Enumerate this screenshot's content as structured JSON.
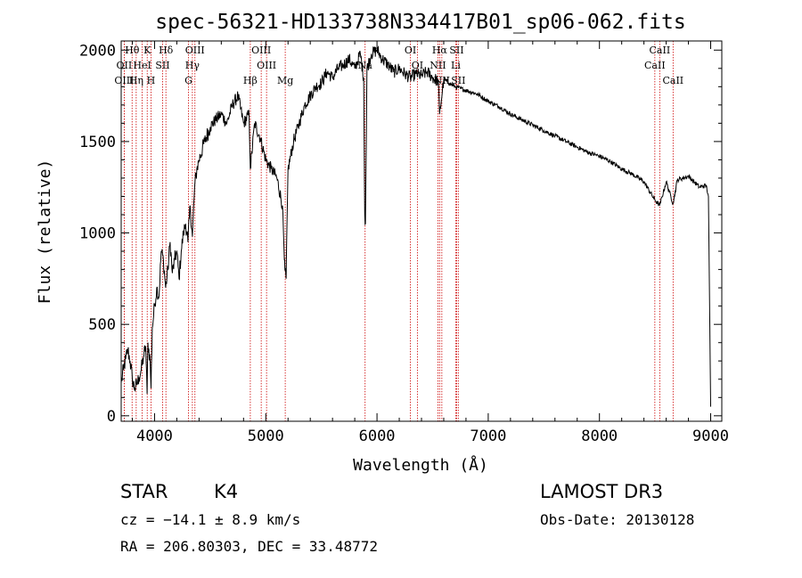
{
  "chart_data": {
    "type": "line",
    "title": "spec-56321-HD133738N334417B01_sp06-062.fits",
    "xlabel": "Wavelength (Å)",
    "ylabel": "Flux (relative)",
    "xlim": [
      3700,
      9100
    ],
    "ylim": [
      -30,
      2050
    ],
    "xticks": [
      4000,
      5000,
      6000,
      7000,
      8000,
      9000
    ],
    "yticks": [
      0,
      500,
      1000,
      1500,
      2000
    ],
    "series": [
      {
        "name": "spectrum",
        "x": [
          3700,
          3720,
          3740,
          3760,
          3780,
          3800,
          3820,
          3840,
          3860,
          3880,
          3900,
          3920,
          3933,
          3940,
          3960,
          3968,
          3980,
          4000,
          4020,
          4040,
          4060,
          4080,
          4100,
          4120,
          4140,
          4160,
          4180,
          4200,
          4220,
          4240,
          4260,
          4280,
          4300,
          4320,
          4340,
          4360,
          4380,
          4400,
          4450,
          4500,
          4550,
          4600,
          4650,
          4700,
          4750,
          4800,
          4850,
          4861,
          4900,
          4950,
          5000,
          5050,
          5100,
          5150,
          5167,
          5172,
          5183,
          5200,
          5250,
          5300,
          5350,
          5400,
          5450,
          5500,
          5550,
          5600,
          5650,
          5700,
          5750,
          5800,
          5850,
          5880,
          5890,
          5896,
          5910,
          5950,
          6000,
          6050,
          6100,
          6150,
          6200,
          6250,
          6300,
          6350,
          6400,
          6450,
          6500,
          6550,
          6563,
          6600,
          6650,
          6700,
          6750,
          6800,
          6900,
          7000,
          7100,
          7200,
          7300,
          7400,
          7500,
          7600,
          7700,
          7800,
          7900,
          8000,
          8100,
          8200,
          8300,
          8400,
          8498,
          8542,
          8600,
          8662,
          8700,
          8800,
          8900,
          8960,
          8980,
          9000
        ],
        "y": [
          180,
          250,
          310,
          360,
          300,
          200,
          150,
          170,
          210,
          250,
          320,
          380,
          120,
          400,
          300,
          150,
          480,
          600,
          700,
          650,
          900,
          850,
          700,
          800,
          950,
          780,
          850,
          900,
          750,
          900,
          1000,
          1050,
          950,
          1150,
          980,
          1250,
          1350,
          1400,
          1500,
          1580,
          1620,
          1650,
          1600,
          1700,
          1750,
          1600,
          1650,
          1350,
          1600,
          1520,
          1400,
          1350,
          1300,
          1150,
          850,
          800,
          750,
          1350,
          1500,
          1600,
          1700,
          1750,
          1800,
          1820,
          1880,
          1850,
          1900,
          1920,
          1950,
          1900,
          1980,
          1850,
          1100,
          1050,
          1900,
          1980,
          2000,
          1950,
          1920,
          1880,
          1900,
          1870,
          1850,
          1870,
          1860,
          1880,
          1850,
          1830,
          1650,
          1840,
          1820,
          1800,
          1790,
          1780,
          1760,
          1720,
          1690,
          1650,
          1620,
          1590,
          1560,
          1530,
          1500,
          1470,
          1440,
          1420,
          1390,
          1350,
          1320,
          1280,
          1180,
          1150,
          1280,
          1160,
          1290,
          1310,
          1250,
          1260,
          1200,
          50
        ]
      }
    ],
    "spectral_lines": [
      {
        "name": "Hθ",
        "x": 3798,
        "row": 0
      },
      {
        "name": "OII",
        "x": 3727,
        "row": 1
      },
      {
        "name": "OIII",
        "x": 3727,
        "row": 2
      },
      {
        "name": "Hη",
        "x": 3835,
        "row": 2
      },
      {
        "name": "HeI",
        "x": 3889,
        "row": 1
      },
      {
        "name": "K",
        "x": 3934,
        "row": 0
      },
      {
        "name": "H",
        "x": 3968,
        "row": 2
      },
      {
        "name": "SII",
        "x": 4072,
        "row": 1
      },
      {
        "name": "Hδ",
        "x": 4102,
        "row": 0
      },
      {
        "name": "OIII",
        "x": 4363,
        "row": 0
      },
      {
        "name": "Hγ",
        "x": 4340,
        "row": 1
      },
      {
        "name": "G",
        "x": 4305,
        "row": 2
      },
      {
        "name": "Hβ",
        "x": 4861,
        "row": 2
      },
      {
        "name": "OIII",
        "x": 4959,
        "row": 0
      },
      {
        "name": "OIII",
        "x": 5007,
        "row": 1
      },
      {
        "name": "Mg",
        "x": 5175,
        "row": 2
      },
      {
        "name": "Na",
        "x": 5893,
        "row": 1
      },
      {
        "name": "OI",
        "x": 6300,
        "row": 0
      },
      {
        "name": "OI",
        "x": 6363,
        "row": 1
      },
      {
        "name": "Hα",
        "x": 6563,
        "row": 0
      },
      {
        "name": "NII",
        "x": 6548,
        "row": 1
      },
      {
        "name": "NII",
        "x": 6583,
        "row": 2
      },
      {
        "name": "SII",
        "x": 6716,
        "row": 0
      },
      {
        "name": "Li",
        "x": 6708,
        "row": 1
      },
      {
        "name": "SII",
        "x": 6731,
        "row": 2
      },
      {
        "name": "CaII",
        "x": 8542,
        "row": 0
      },
      {
        "name": "CaII",
        "x": 8498,
        "row": 1
      },
      {
        "name": "CaII",
        "x": 8662,
        "row": 2
      }
    ],
    "colors": {
      "line": "#000000",
      "marker": "#cc0000",
      "axis": "#000000"
    }
  },
  "info": {
    "class_label": "STAR",
    "subclass": "K4",
    "survey": "LAMOST DR3",
    "redshift": "cz = −14.1 ± 8.9 km/s",
    "obs_date": "Obs-Date: 20130128",
    "coords": "RA = 206.80303, DEC =  33.48772"
  }
}
